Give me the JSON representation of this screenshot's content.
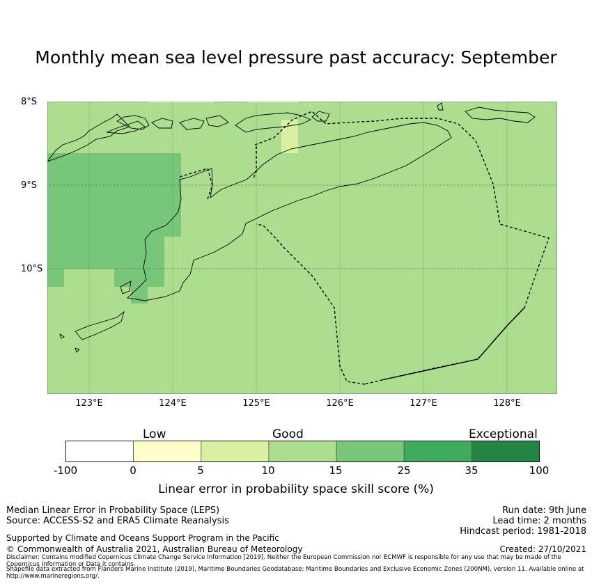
{
  "title": "Monthly mean sea level pressure past accuracy: September",
  "map": {
    "lat_labels": [
      "8°S",
      "9°S",
      "10°S"
    ],
    "lon_labels": [
      "123°E",
      "124°E",
      "125°E",
      "126°E",
      "127°E",
      "128°E"
    ],
    "lon_range": [
      122.5,
      128.6
    ],
    "lat_range": [
      -11.5,
      -8.0
    ],
    "colors": {
      "exceptional_low": "#ffffff",
      "low": "#ffffcc",
      "5_10": "#d9f0a3",
      "10_15": "#addd8e",
      "15_25": "#78c679",
      "25_35": "#41ab5d",
      "35_100": "#238443"
    }
  },
  "colorbar": {
    "categories": [
      "Low",
      "Good",
      "Exceptional"
    ],
    "ticks": [
      "-100",
      "0",
      "5",
      "10",
      "15",
      "25",
      "35",
      "100"
    ],
    "colors": [
      "#ffffff",
      "#ffffcc",
      "#d9f0a3",
      "#addd8e",
      "#78c679",
      "#41ab5d",
      "#238443"
    ],
    "label": "Linear error in probability space skill score (%)"
  },
  "footer": {
    "method": "Median Linear Error in Probability Space (LEPS)",
    "source": "Source: ACCESS-S2 and ERA5 Climate Reanalysis",
    "run_date": "Run date: 9th June",
    "lead_time": "Lead time: 2 months",
    "hindcast": "Hindcast period: 1981-2018",
    "support": "Supported by Climate and Oceans Support Program in the Pacific",
    "copyright": "© Commonwealth of Australia 2021, Australian Bureau of Meteorology",
    "created": "Created: 27/10/2021",
    "disclaimer": "Disclaimer: Contains modified Copernicus Climate Change Service Information [2019]. Neither the European Commission nor ECMWF is responsible for any use that may be made of the Copernicus Information or Data it contains.",
    "shapefile": "Shapefile data extracted from Flanders Marine Institute (2019), Maritime Boundaries Geodatabase: Maritime Boundaries and Exclusive Economic Zones (200NM), version 11. Available online at http://www.marineregions.org/."
  }
}
